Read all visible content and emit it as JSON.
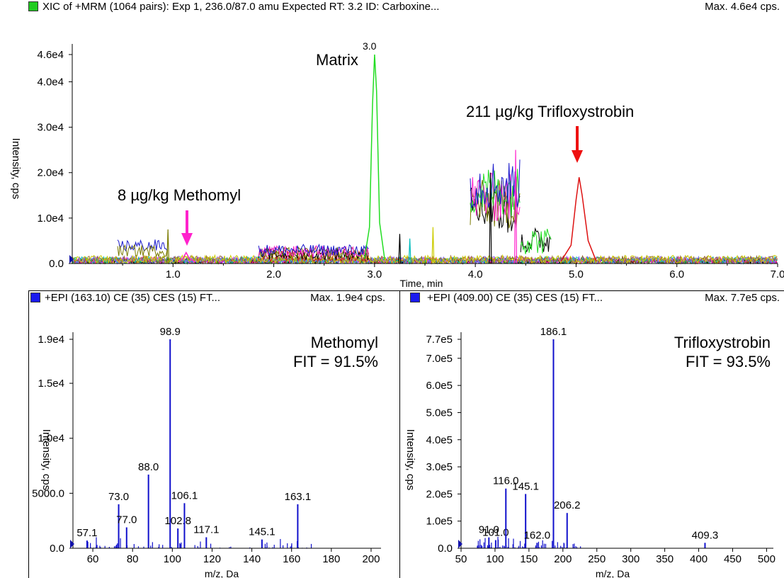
{
  "xic": {
    "header": "XIC of +MRM (1064 pairs): Exp 1, 236.0/87.0 amu Expected RT: 3.2 ID: Carboxine...",
    "max": "Max. 4.6e4 cps.",
    "ylabel": "Intensity, cps",
    "xlabel": "Time, min",
    "annotations": {
      "matrix": "Matrix",
      "matrix_peak": "3.0",
      "methomyl": "8 µg/kg Methomyl",
      "trifloxystrobin": "211 µg/kg Trifloxystrobin"
    },
    "colors": {
      "square": "#22cc22",
      "arrow_methomyl": "#ff22cc",
      "arrow_triflox": "#ee1111"
    }
  },
  "spec1": {
    "header": "+EPI (163.10) CE (35) CES (15) FT...",
    "max": "Max. 1.9e4 cps.",
    "compound": "Methomyl",
    "fit": "FIT = 91.5%",
    "ylabel": "Intensity, cps",
    "xlabel": "m/z, Da",
    "color": "#1010cc"
  },
  "spec2": {
    "header": "+EPI (409.00) CE (35) CES (15) FT...",
    "max": "Max. 7.7e5 cps.",
    "compound": "Trifloxystrobin",
    "fit": "FIT = 93.5%",
    "ylabel": "Intensity, cps",
    "xlabel": "m/z, Da",
    "color": "#1010cc"
  },
  "chart_data": [
    {
      "type": "line",
      "title": "XIC of +MRM (1064 pairs): Exp 1, 236.0/87.0 amu Expected RT: 3.2 ID: Carboxine...",
      "xlabel": "Time, min",
      "ylabel": "Intensity, cps",
      "xlim": [
        0.0,
        7.0
      ],
      "ylim": [
        0,
        46000
      ],
      "x_ticks": [
        "1.0",
        "2.0",
        "3.0",
        "4.0",
        "5.0",
        "6.0",
        "7.0"
      ],
      "y_ticks": [
        {
          "value": 0,
          "label": "0.0"
        },
        {
          "value": 10000,
          "label": "1.0e4"
        },
        {
          "value": 20000,
          "label": "2.0e4"
        },
        {
          "value": 30000,
          "label": "3.0e4"
        },
        {
          "value": 40000,
          "label": "4.0e4"
        },
        {
          "value": 46000,
          "label": "4.6e4"
        }
      ],
      "series": [
        {
          "color": "#22dd22",
          "x": [
            2.9,
            2.95,
            2.98,
            3.0,
            3.02,
            3.05,
            3.1
          ],
          "y": [
            1000,
            8000,
            35000,
            46000,
            38000,
            9000,
            1000
          ]
        },
        {
          "color": "#dd1111",
          "x": [
            4.85,
            4.95,
            5.0,
            5.03,
            5.06,
            5.12,
            5.2
          ],
          "y": [
            500,
            4000,
            14000,
            19000,
            15000,
            5000,
            500
          ]
        },
        {
          "color": "#ff22cc",
          "x": [
            1.05,
            1.1,
            1.13,
            1.16,
            1.22
          ],
          "y": [
            300,
            1200,
            2400,
            1200,
            300
          ]
        }
      ],
      "annotations": [
        "Matrix",
        "3.0",
        "8 µg/kg Methomyl",
        "211 µg/kg Trifloxystrobin"
      ]
    },
    {
      "type": "bar",
      "title": "+EPI (163.10) CE (35) CES (15) FT...",
      "xlabel": "m/z, Da",
      "ylabel": "Intensity, cps",
      "xlim": [
        50,
        205
      ],
      "ylim": [
        0,
        19000
      ],
      "x_ticks": [
        "60",
        "80",
        "100",
        "120",
        "140",
        "160",
        "180",
        "200"
      ],
      "y_ticks": [
        {
          "value": 0,
          "label": "0.0"
        },
        {
          "value": 5000,
          "label": "5000.0"
        },
        {
          "value": 10000,
          "label": "1.0e4"
        },
        {
          "value": 15000,
          "label": "1.5e4"
        },
        {
          "value": 19000,
          "label": "1.9e4"
        }
      ],
      "peaks": [
        {
          "mz": 57.1,
          "intensity": 700,
          "label": "57.1"
        },
        {
          "mz": 73.0,
          "intensity": 4000,
          "label": "73.0"
        },
        {
          "mz": 77.0,
          "intensity": 1900,
          "label": "77.0"
        },
        {
          "mz": 88.0,
          "intensity": 6700,
          "label": "88.0"
        },
        {
          "mz": 98.9,
          "intensity": 19000,
          "label": "98.9"
        },
        {
          "mz": 102.8,
          "intensity": 1800,
          "label": "102.8"
        },
        {
          "mz": 106.1,
          "intensity": 4100,
          "label": "106.1"
        },
        {
          "mz": 117.1,
          "intensity": 1000,
          "label": "117.1"
        },
        {
          "mz": 145.1,
          "intensity": 800,
          "label": "145.1"
        },
        {
          "mz": 163.1,
          "intensity": 4000,
          "label": "163.1"
        }
      ]
    },
    {
      "type": "bar",
      "title": "+EPI (409.00) CE (35) CES (15) FT...",
      "xlabel": "m/z, Da",
      "ylabel": "Intensity, cps",
      "xlim": [
        50,
        510
      ],
      "ylim": [
        0,
        770000
      ],
      "x_ticks": [
        "50",
        "100",
        "150",
        "200",
        "250",
        "300",
        "350",
        "400",
        "450",
        "500"
      ],
      "y_ticks": [
        {
          "value": 0,
          "label": "0.0"
        },
        {
          "value": 100000,
          "label": "1.0e5"
        },
        {
          "value": 200000,
          "label": "2.0e5"
        },
        {
          "value": 300000,
          "label": "3.0e5"
        },
        {
          "value": 400000,
          "label": "4.0e5"
        },
        {
          "value": 500000,
          "label": "5.0e5"
        },
        {
          "value": 600000,
          "label": "6.0e5"
        },
        {
          "value": 700000,
          "label": "7.0e5"
        },
        {
          "value": 770000,
          "label": "7.7e5"
        }
      ],
      "peaks": [
        {
          "mz": 91.0,
          "intensity": 40000,
          "label": "91.0"
        },
        {
          "mz": 101.0,
          "intensity": 30000,
          "label": "101.0"
        },
        {
          "mz": 116.0,
          "intensity": 220000,
          "label": "116.0"
        },
        {
          "mz": 145.1,
          "intensity": 200000,
          "label": "145.1"
        },
        {
          "mz": 162.0,
          "intensity": 20000,
          "label": "162.0"
        },
        {
          "mz": 186.1,
          "intensity": 770000,
          "label": "186.1"
        },
        {
          "mz": 206.2,
          "intensity": 130000,
          "label": "206.2"
        },
        {
          "mz": 409.3,
          "intensity": 20000,
          "label": "409.3"
        }
      ]
    }
  ]
}
